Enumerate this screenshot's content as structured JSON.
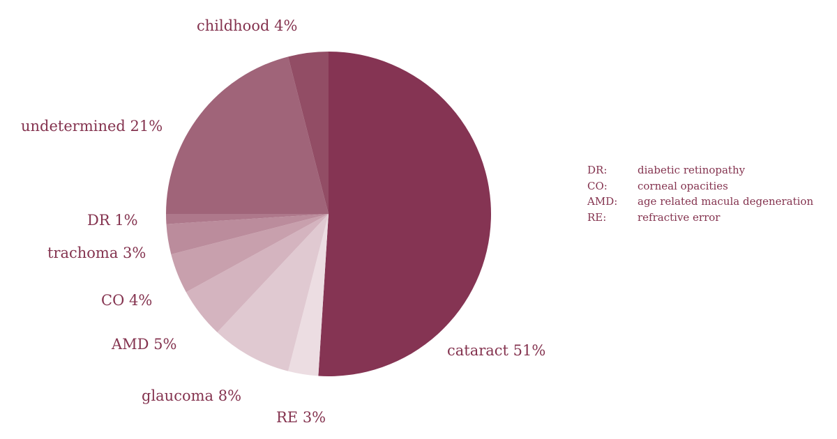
{
  "chart_data": {
    "type": "pie",
    "start": "top, clockwise",
    "label_color": "#84334f",
    "slices": [
      {
        "label": "cataract",
        "value": 51,
        "display": "cataract 51%",
        "color": "#853453"
      },
      {
        "label": "RE",
        "value": 3,
        "display": "RE 3%",
        "color": "#ecdde2"
      },
      {
        "label": "glaucoma",
        "value": 8,
        "display": "glaucoma 8%",
        "color": "#e0c9d1"
      },
      {
        "label": "AMD",
        "value": 5,
        "display": "AMD 5%",
        "color": "#d4b4bf"
      },
      {
        "label": "CO",
        "value": 4,
        "display": "CO 4%",
        "color": "#c8a0ad"
      },
      {
        "label": "trachoma",
        "value": 3,
        "display": "trachoma 3%",
        "color": "#bb8c9c"
      },
      {
        "label": "DR",
        "value": 1,
        "display": "DR 1%",
        "color": "#ae788b"
      },
      {
        "label": "undetermined",
        "value": 21,
        "display": "undetermined 21%",
        "color": "#a06479"
      },
      {
        "label": "childhood",
        "value": 4,
        "display": "childhood 4%",
        "color": "#924d65"
      }
    ],
    "legend": [
      {
        "abbr": "DR:",
        "text": "diabetic retinopathy"
      },
      {
        "abbr": "CO:",
        "text": "corneal opacities"
      },
      {
        "abbr": "AMD:",
        "text": "age related macula degeneration"
      },
      {
        "abbr": "RE:",
        "text": "refractive error"
      }
    ]
  }
}
